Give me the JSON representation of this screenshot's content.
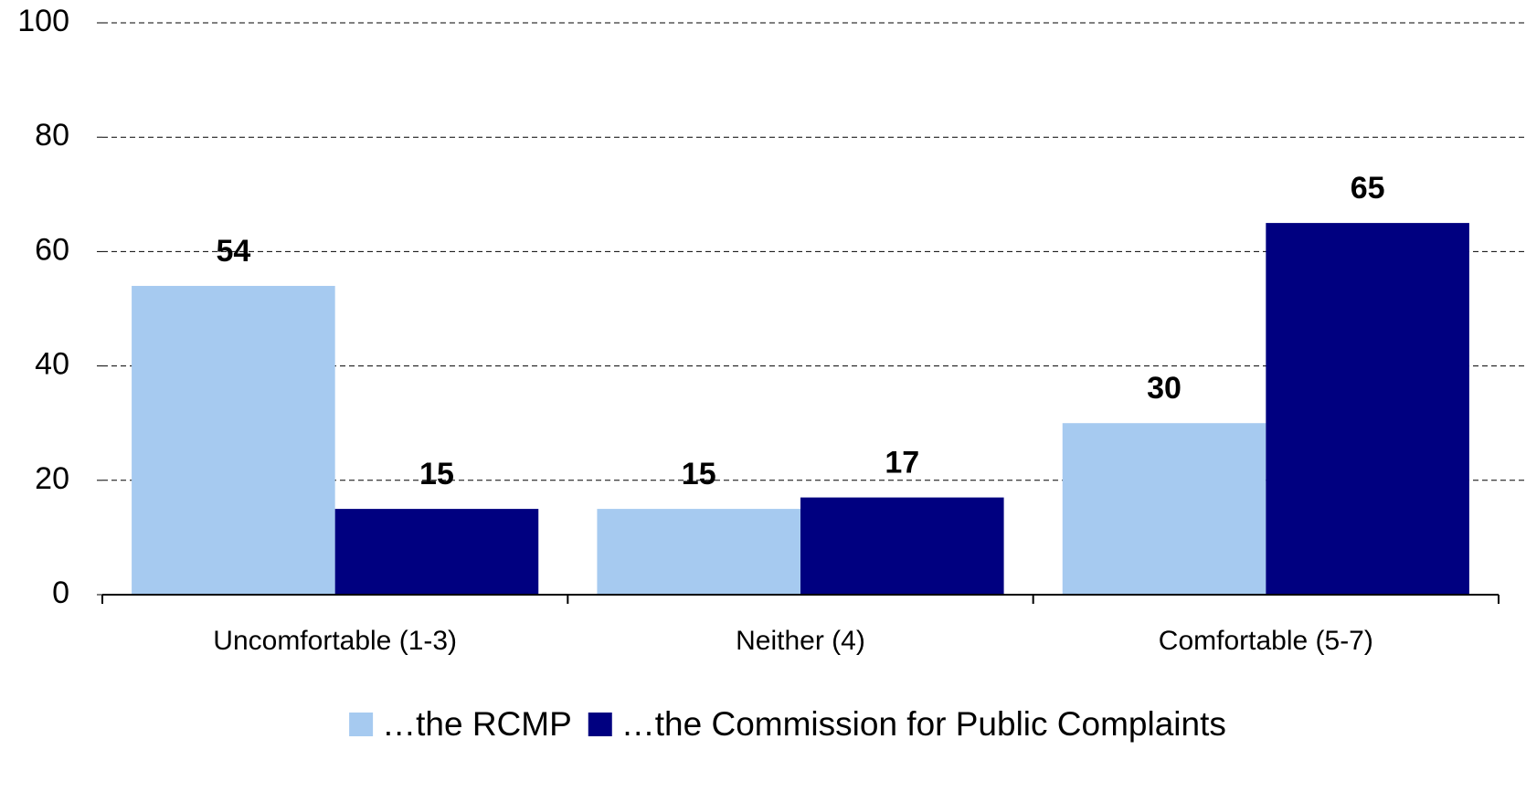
{
  "chart_data": {
    "type": "bar",
    "categories": [
      "Uncomfortable (1-3)",
      "Neither (4)",
      "Comfortable (5-7)"
    ],
    "series": [
      {
        "name": "…the RCMP",
        "color": "#a6caf0",
        "values": [
          54,
          15,
          30
        ]
      },
      {
        "name": "…the Commission for Public Complaints",
        "color": "#000080",
        "values": [
          15,
          17,
          65
        ]
      }
    ],
    "ylim": [
      0,
      100
    ],
    "yticks": [
      0,
      20,
      40,
      60,
      80,
      100
    ],
    "grid": true,
    "legend": "bottom"
  }
}
